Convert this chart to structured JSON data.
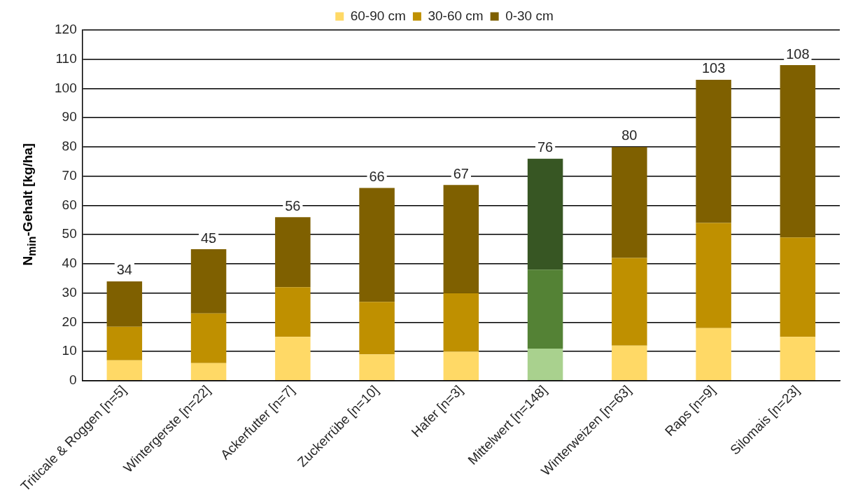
{
  "chart_data": {
    "type": "bar",
    "stacked": true,
    "ylabel": "N$_{min}$-Gehalt [kg/ha]",
    "categories": [
      "Triticale & Roggen [n=5]",
      "Wintergerste [n=22]",
      "Ackerfutter [n=7]",
      "Zuckerrübe [n=10]",
      "Hafer [n=3]",
      "Mittelwert [n=148]",
      "Winterweizen [n=63]",
      "Raps [n=9]",
      "Silomais [n=23]"
    ],
    "series": [
      {
        "name": "60-90 cm",
        "color": "#ffd966",
        "colors": [
          "#ffd966",
          "#ffd966",
          "#ffd966",
          "#ffd966",
          "#ffd966",
          "#a9d18e",
          "#ffd966",
          "#ffd966",
          "#ffd966"
        ],
        "values": [
          7,
          6,
          15,
          9,
          10,
          11,
          12,
          18,
          15
        ]
      },
      {
        "name": "30-60 cm",
        "color": "#bf9000",
        "colors": [
          "#bf9000",
          "#bf9000",
          "#bf9000",
          "#bf9000",
          "#bf9000",
          "#548235",
          "#bf9000",
          "#bf9000",
          "#bf9000"
        ],
        "values": [
          11.5,
          17,
          17,
          18,
          20,
          27,
          30,
          36,
          34
        ]
      },
      {
        "name": "0-30 cm",
        "color": "#7f6000",
        "colors": [
          "#7f6000",
          "#7f6000",
          "#7f6000",
          "#7f6000",
          "#7f6000",
          "#375623",
          "#7f6000",
          "#7f6000",
          "#7f6000"
        ],
        "values": [
          15.5,
          22,
          24,
          39,
          37,
          38,
          38,
          49,
          59
        ]
      }
    ],
    "totals": [
      "34",
      "45",
      "56",
      "66",
      "67",
      "76",
      "80",
      "103",
      "108"
    ],
    "ylim": [
      0,
      120
    ],
    "yticks": [
      0,
      10,
      20,
      30,
      40,
      50,
      60,
      70,
      80,
      90,
      100,
      110,
      120
    ],
    "grid": "y",
    "legend": "top"
  }
}
